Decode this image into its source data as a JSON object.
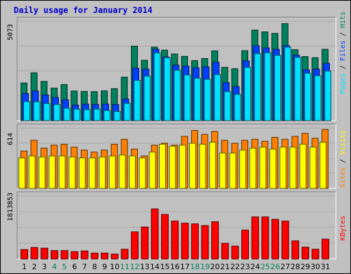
{
  "title": "Daily usage for January 2014",
  "colors": {
    "background": "#c0c0c0",
    "title": "#0000cc",
    "hits": "#00805c",
    "files": "#0040ff",
    "pages": "#00e0ff",
    "visits": "#ffff00",
    "sites": "#ff8000",
    "kbytes": "#ff0000",
    "day_normal": "#000000",
    "day_weekend": "#00805c",
    "separator": "#000000"
  },
  "chart_data": [
    {
      "type": "bar",
      "title": "Daily usage for January 2014",
      "ymax_label": "5073",
      "ylim": [
        0,
        5073
      ],
      "grid": true,
      "legend": "right (vertical)",
      "legend_labels": [
        "Pages",
        "Files",
        "Hits"
      ],
      "separator": " / ",
      "categories": [
        "1",
        "2",
        "3",
        "4",
        "5",
        "6",
        "7",
        "8",
        "9",
        "10",
        "11",
        "12",
        "13",
        "14",
        "15",
        "16",
        "17",
        "18",
        "19",
        "20",
        "21",
        "22",
        "23",
        "24",
        "25",
        "26",
        "27",
        "28",
        "29",
        "30",
        "31"
      ],
      "series": [
        {
          "name": "Hits",
          "color_key": "hits",
          "values": [
            1920,
            2440,
            2000,
            1660,
            1840,
            1510,
            1490,
            1480,
            1520,
            1630,
            2220,
            3800,
            3080,
            3750,
            3600,
            3400,
            3280,
            3060,
            3170,
            3560,
            2720,
            2650,
            3570,
            4620,
            4530,
            4450,
            4950,
            3620,
            3270,
            3210,
            3640
          ]
        },
        {
          "name": "Files",
          "color_key": "files",
          "values": [
            1380,
            1510,
            1310,
            1180,
            1060,
            790,
            840,
            830,
            840,
            820,
            1100,
            2670,
            2630,
            3640,
            3250,
            2830,
            2780,
            2700,
            2740,
            2980,
            1940,
            1740,
            3050,
            3820,
            3710,
            3640,
            3830,
            3340,
            2590,
            2630,
            2920
          ]
        },
        {
          "name": "Pages",
          "color_key": "pages",
          "values": [
            970,
            960,
            870,
            820,
            630,
            580,
            560,
            590,
            510,
            470,
            880,
            2050,
            2270,
            3460,
            3210,
            2570,
            2330,
            2160,
            2110,
            2350,
            1480,
            1340,
            2720,
            3420,
            3460,
            3330,
            3750,
            3230,
            2420,
            2290,
            2530
          ]
        }
      ]
    },
    {
      "type": "bar",
      "ymax_label": "614",
      "ylim": [
        0,
        614
      ],
      "grid": true,
      "legend": "right (vertical)",
      "legend_labels": [
        "Sites",
        "Visits"
      ],
      "separator": " / ",
      "categories": [
        "1",
        "2",
        "3",
        "4",
        "5",
        "6",
        "7",
        "8",
        "9",
        "10",
        "11",
        "12",
        "13",
        "14",
        "15",
        "16",
        "17",
        "18",
        "19",
        "20",
        "21",
        "22",
        "23",
        "24",
        "25",
        "26",
        "27",
        "28",
        "29",
        "30",
        "31"
      ],
      "series": [
        {
          "name": "Sites",
          "color_key": "sites",
          "values": [
            380,
            490,
            410,
            440,
            450,
            420,
            390,
            370,
            390,
            450,
            500,
            400,
            330,
            440,
            460,
            440,
            530,
            590,
            550,
            580,
            490,
            460,
            490,
            500,
            480,
            520,
            500,
            530,
            560,
            510,
            600
          ]
        },
        {
          "name": "Visits",
          "color_key": "visits",
          "values": [
            310,
            330,
            320,
            330,
            330,
            320,
            310,
            310,
            320,
            330,
            340,
            330,
            310,
            370,
            450,
            430,
            440,
            460,
            450,
            470,
            360,
            360,
            390,
            410,
            420,
            400,
            420,
            420,
            450,
            420,
            470
          ]
        }
      ]
    },
    {
      "type": "bar",
      "ymax_label": "1813853",
      "ylim": [
        0,
        1813853
      ],
      "grid": true,
      "legend": "right (vertical)",
      "legend_labels": [
        "KBytes"
      ],
      "categories": [
        "1",
        "2",
        "3",
        "4",
        "5",
        "6",
        "7",
        "8",
        "9",
        "10",
        "11",
        "12",
        "13",
        "14",
        "15",
        "16",
        "17",
        "18",
        "19",
        "20",
        "21",
        "22",
        "23",
        "24",
        "25",
        "26",
        "27",
        "28",
        "29",
        "30",
        "31"
      ],
      "series": [
        {
          "name": "KBytes",
          "color_key": "kbytes",
          "values": [
            270000,
            330000,
            310000,
            240000,
            240000,
            210000,
            230000,
            170000,
            170000,
            140000,
            280000,
            780000,
            920000,
            1440000,
            1280000,
            1090000,
            1030000,
            1010000,
            960000,
            1070000,
            450000,
            370000,
            830000,
            1210000,
            1210000,
            1140000,
            1090000,
            520000,
            340000,
            280000,
            570000
          ]
        }
      ]
    }
  ],
  "day_labels": [
    "1",
    "2",
    "3",
    "4",
    "5",
    "6",
    "7",
    "8",
    "9",
    "10",
    "11",
    "12",
    "13",
    "14",
    "15",
    "16",
    "17",
    "18",
    "19",
    "20",
    "21",
    "22",
    "23",
    "24",
    "25",
    "26",
    "27",
    "28",
    "29",
    "30",
    "31"
  ],
  "weekend_days": [
    "4",
    "5",
    "11",
    "12",
    "18",
    "19",
    "25",
    "26"
  ]
}
